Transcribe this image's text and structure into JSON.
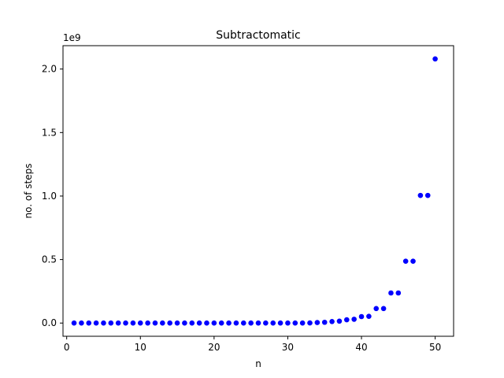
{
  "chart_data": {
    "type": "scatter",
    "title": "Subtractomatic",
    "xlabel": "n",
    "ylabel": "no. of steps",
    "y_offset_label": "1e9",
    "xlim": [
      -0.5,
      52.5
    ],
    "ylim": [
      -0.104,
      2.184
    ],
    "x_ticks": [
      0,
      10,
      20,
      30,
      40,
      50
    ],
    "x_tick_labels": [
      "0",
      "10",
      "20",
      "30",
      "40",
      "50"
    ],
    "y_ticks": [
      0.0,
      0.5,
      1.0,
      1.5,
      2.0
    ],
    "y_tick_labels": [
      "0.0",
      "0.5",
      "1.0",
      "1.5",
      "2.0"
    ],
    "grid": false,
    "marker_color": "#0000ff",
    "x": [
      1,
      2,
      3,
      4,
      5,
      6,
      7,
      8,
      9,
      10,
      11,
      12,
      13,
      14,
      15,
      16,
      17,
      18,
      19,
      20,
      21,
      22,
      23,
      24,
      25,
      26,
      27,
      28,
      29,
      30,
      31,
      32,
      33,
      34,
      35,
      36,
      37,
      38,
      39,
      40,
      41,
      42,
      43,
      44,
      45,
      46,
      47,
      48,
      49,
      50
    ],
    "y": [
      0,
      0,
      0,
      0,
      0,
      0,
      0,
      0,
      0,
      0,
      0,
      0,
      0,
      0,
      0,
      0,
      0,
      0,
      0,
      0,
      0,
      0,
      0,
      0,
      0,
      0,
      0,
      0,
      0,
      0,
      0.0005,
      0.0005,
      0.001,
      0.004,
      0.006,
      0.012,
      0.015,
      0.026,
      0.03,
      0.051,
      0.053,
      0.114,
      0.114,
      0.237,
      0.237,
      0.487,
      0.487,
      1.005,
      1.005,
      2.08
    ]
  }
}
